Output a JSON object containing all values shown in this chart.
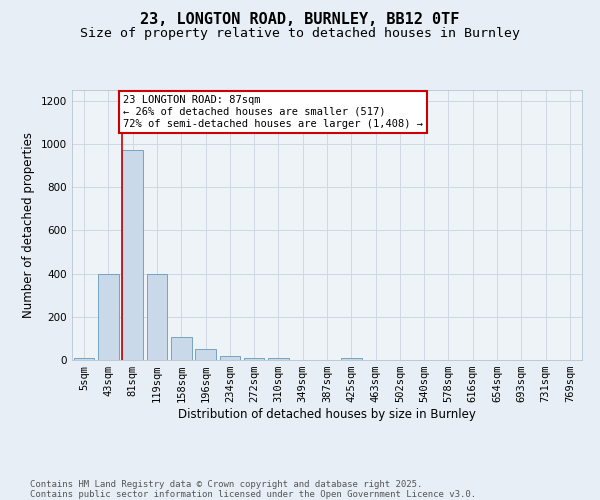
{
  "title_line1": "23, LONGTON ROAD, BURNLEY, BB12 0TF",
  "title_line2": "Size of property relative to detached houses in Burnley",
  "xlabel": "Distribution of detached houses by size in Burnley",
  "ylabel": "Number of detached properties",
  "bin_labels": [
    "5sqm",
    "43sqm",
    "81sqm",
    "119sqm",
    "158sqm",
    "196sqm",
    "234sqm",
    "272sqm",
    "310sqm",
    "349sqm",
    "387sqm",
    "425sqm",
    "463sqm",
    "502sqm",
    "540sqm",
    "578sqm",
    "616sqm",
    "654sqm",
    "693sqm",
    "731sqm",
    "769sqm"
  ],
  "bar_values": [
    10,
    400,
    970,
    400,
    105,
    50,
    20,
    10,
    10,
    0,
    0,
    10,
    0,
    0,
    0,
    0,
    0,
    0,
    0,
    0,
    0
  ],
  "bar_color": "#c9d9ea",
  "bar_edge_color": "#6699bb",
  "subject_bin_index": 2,
  "subject_line_color": "#cc0000",
  "annotation_text": "23 LONGTON ROAD: 87sqm\n← 26% of detached houses are smaller (517)\n72% of semi-detached houses are larger (1,408) →",
  "annotation_box_color": "#ffffff",
  "annotation_border_color": "#cc0000",
  "ylim": [
    0,
    1250
  ],
  "yticks": [
    0,
    200,
    400,
    600,
    800,
    1000,
    1200
  ],
  "background_color": "#e8eef5",
  "plot_bg_color": "#eef3f8",
  "grid_color": "#d0d8e4",
  "footer_text": "Contains HM Land Registry data © Crown copyright and database right 2025.\nContains public sector information licensed under the Open Government Licence v3.0.",
  "title_fontsize": 11,
  "subtitle_fontsize": 9.5,
  "axis_label_fontsize": 8.5,
  "tick_fontsize": 7.5,
  "annotation_fontsize": 7.5,
  "footer_fontsize": 6.5
}
